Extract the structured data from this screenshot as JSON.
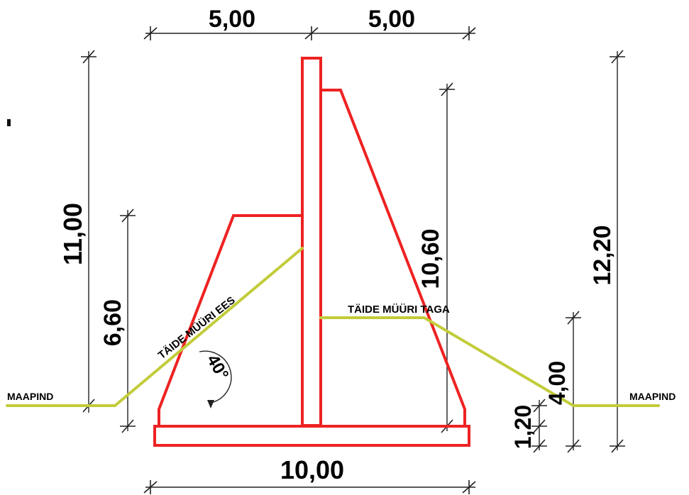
{
  "dimensions": {
    "top_left": "5,00",
    "top_right": "5,00",
    "bottom": "10,00",
    "left_outer": "11,00",
    "left_inner": "6,60",
    "right_inner": "10,60",
    "right_outer": "12,20",
    "right_fill": "4,00",
    "footing": "1,20"
  },
  "labels": {
    "fill_front": "TÄIDE MÜÜRI EES",
    "fill_behind": "TÄIDE MÜÜRI TAGA",
    "ground_left": "MAAPIND",
    "ground_right": "MAAPIND",
    "angle": "40°"
  },
  "colors": {
    "structure": "#ee2222",
    "fill": "#c2cc3a",
    "dimension": "#222222"
  }
}
